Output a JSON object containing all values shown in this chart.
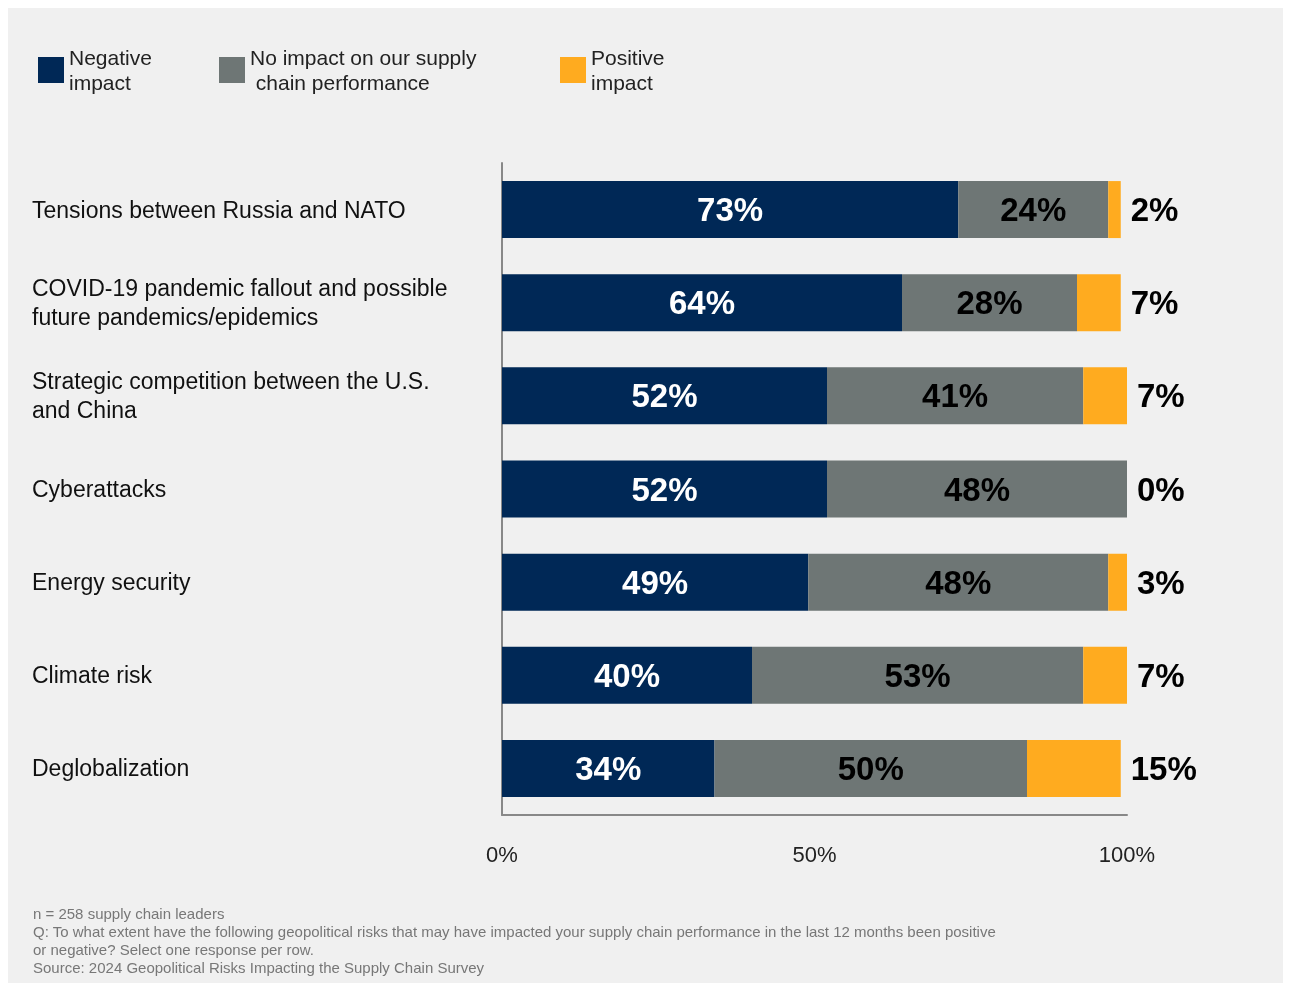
{
  "chart_data": {
    "type": "bar",
    "orientation": "horizontal",
    "stacked": true,
    "categories": [
      "Tensions between Russia and NATO",
      "COVID-19 pandemic fallout and possible future pandemics/epidemics",
      "Strategic competition between the U.S. and China",
      "Cyberattacks",
      "Energy security",
      "Climate risk",
      "Deglobalization"
    ],
    "series": [
      {
        "name": "Negative impact",
        "color": "#002856",
        "values": [
          73,
          64,
          52,
          52,
          49,
          40,
          34
        ],
        "value_labels": [
          "73%",
          "64%",
          "52%",
          "52%",
          "49%",
          "40%",
          "34%"
        ]
      },
      {
        "name": "No impact on our supply chain performance",
        "color": "#6e7675",
        "values": [
          24,
          28,
          41,
          48,
          48,
          53,
          50
        ],
        "value_labels": [
          "24%",
          "28%",
          "41%",
          "48%",
          "48%",
          "53%",
          "50%"
        ]
      },
      {
        "name": "Positive impact",
        "color": "#ffab1f",
        "values": [
          2,
          7,
          7,
          0,
          3,
          7,
          15
        ],
        "value_labels": [
          "2%",
          "7%",
          "7%",
          "0%",
          "3%",
          "7%",
          "15%"
        ]
      }
    ],
    "xlim": [
      0,
      100
    ],
    "xticks": [
      {
        "value": 0,
        "label": "0%"
      },
      {
        "value": 50,
        "label": "50%"
      },
      {
        "value": 100,
        "label": "100%"
      }
    ],
    "grid": false,
    "legend": "top left",
    "annotations": [
      "n = 258 supply chain leaders",
      "Q: To what extent have the following geopolitical risks that may have impacted your supply chain performance in the last 12 months been positive or negative? Select one response per row.",
      "Source: 2024 Geopolitical Risks Impacting the Supply Chain Survey"
    ]
  }
}
